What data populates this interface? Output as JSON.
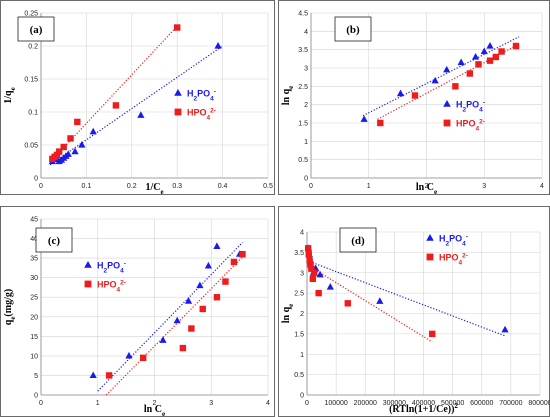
{
  "colors": {
    "h2po4": "#1a1aee",
    "hpo4": "#ee1c1c",
    "grid": "#d4d4d4",
    "axis": "#888888",
    "box": "#6a6a6a"
  },
  "chart_data": [
    {
      "panel": "(a)",
      "type": "scatter",
      "xlabel": "1/C",
      "xlabel_sub": "e",
      "ylabel": "1/q",
      "ylabel_sub": "e",
      "xlim": [
        0,
        0.5
      ],
      "ylim": [
        0,
        0.25
      ],
      "xticks": [
        "0",
        "0.1",
        "0.2",
        "0.3",
        "0.4",
        "0.5"
      ],
      "yticks": [
        "0",
        "0.05",
        "0.1",
        "0.15",
        "0.2",
        "0.25"
      ],
      "grid": true,
      "legend": "right",
      "series": [
        {
          "name": "H2PO4-",
          "name_base": "H",
          "name_sub": "2",
          "name_tail": "PO",
          "name_sub2": "4",
          "name_sup": "-",
          "marker": "triangle",
          "color": "#1a1aee",
          "x": [
            0.025,
            0.035,
            0.04,
            0.045,
            0.05,
            0.055,
            0.06,
            0.075,
            0.09,
            0.115,
            0.22,
            0.39
          ],
          "y": [
            0.025,
            0.028,
            0.025,
            0.027,
            0.03,
            0.033,
            0.036,
            0.04,
            0.05,
            0.07,
            0.095,
            0.2
          ],
          "trend": [
            [
              0.02,
              0.02
            ],
            [
              0.4,
              0.2
            ]
          ]
        },
        {
          "name": "HPO42-",
          "name_base": "HPO",
          "name_sub": "4",
          "name_sup": "2-",
          "marker": "square",
          "color": "#ee1c1c",
          "x": [
            0.025,
            0.03,
            0.035,
            0.04,
            0.05,
            0.065,
            0.08,
            0.165,
            0.3
          ],
          "y": [
            0.029,
            0.032,
            0.035,
            0.04,
            0.047,
            0.06,
            0.085,
            0.11,
            0.228
          ],
          "trend": [
            [
              0.02,
              0.024
            ],
            [
              0.3,
              0.23
            ]
          ]
        }
      ]
    },
    {
      "panel": "(b)",
      "type": "scatter",
      "xlabel": "ln C",
      "xlabel_sub": "e",
      "ylabel": "ln q",
      "ylabel_sub": "e",
      "xlim": [
        0,
        4
      ],
      "ylim": [
        0,
        4.5
      ],
      "xticks": [
        "0",
        "1",
        "2",
        "3",
        "4"
      ],
      "yticks": [
        "0",
        "0.5",
        "1",
        "1.5",
        "2",
        "2.5",
        "3",
        "3.5",
        "4",
        "4.5"
      ],
      "grid": true,
      "legend": "right",
      "series": [
        {
          "name": "H2PO4-",
          "name_base": "H",
          "name_sub": "2",
          "name_tail": "PO",
          "name_sub2": "4",
          "name_sup": "-",
          "marker": "triangle",
          "color": "#1a1aee",
          "x": [
            0.92,
            1.55,
            2.15,
            2.35,
            2.6,
            2.85,
            3.0,
            3.1
          ],
          "y": [
            1.6,
            2.3,
            2.65,
            2.95,
            3.15,
            3.3,
            3.45,
            3.6
          ],
          "trend": [
            [
              0.9,
              1.7
            ],
            [
              3.6,
              3.85
            ]
          ]
        },
        {
          "name": "HPO42-",
          "name_base": "HPO",
          "name_sub": "4",
          "name_sup": "2-",
          "marker": "square",
          "color": "#ee1c1c",
          "x": [
            1.2,
            1.8,
            2.5,
            2.75,
            2.9,
            3.1,
            3.2,
            3.3,
            3.55
          ],
          "y": [
            1.5,
            2.25,
            2.5,
            2.85,
            3.1,
            3.2,
            3.3,
            3.45,
            3.6
          ],
          "trend": [
            [
              1.15,
              1.6
            ],
            [
              3.6,
              3.65
            ]
          ]
        }
      ]
    },
    {
      "panel": "(c)",
      "type": "scatter",
      "xlabel": "ln C",
      "xlabel_sub": "e",
      "ylabel": "q",
      "ylabel_sub": "e",
      "ylabel_tail": "(mg/g)",
      "xlim": [
        0,
        4
      ],
      "ylim": [
        0,
        45
      ],
      "xticks": [
        "0",
        "1",
        "2",
        "3",
        "4"
      ],
      "yticks": [
        "0",
        "5",
        "10",
        "15",
        "20",
        "25",
        "30",
        "35",
        "40",
        "45"
      ],
      "grid": true,
      "legend": "left",
      "series": [
        {
          "name": "H2PO4-",
          "name_base": "H",
          "name_sub": "2",
          "name_tail": "PO",
          "name_sub2": "4",
          "name_sup": "-",
          "marker": "triangle",
          "color": "#1a1aee",
          "x": [
            0.92,
            1.55,
            2.15,
            2.4,
            2.6,
            2.8,
            2.95,
            3.1,
            3.5
          ],
          "y": [
            5,
            10,
            14,
            19,
            24,
            28,
            33,
            38,
            36
          ],
          "trend": [
            [
              1.0,
              1.0
            ],
            [
              3.55,
              39
            ]
          ]
        },
        {
          "name": "HPO42-",
          "name_base": "HPO",
          "name_sub": "4",
          "name_sup": "2-",
          "marker": "square",
          "color": "#ee1c1c",
          "x": [
            1.2,
            1.8,
            2.5,
            2.65,
            2.85,
            3.1,
            3.25,
            3.4,
            3.55
          ],
          "y": [
            5,
            9.5,
            12,
            17,
            22,
            25,
            29,
            34,
            36
          ],
          "trend": [
            [
              1.15,
              0
            ],
            [
              3.6,
              36
            ]
          ]
        }
      ]
    },
    {
      "panel": "(d)",
      "type": "scatter",
      "xlabel": "(RTln(1+1/Ce))",
      "xlabel_sup": "2",
      "ylabel": "ln q",
      "ylabel_sub": "e",
      "xlim": [
        0,
        800000
      ],
      "ylim": [
        0,
        4
      ],
      "xticks": [
        "0",
        "100000",
        "200000",
        "300000",
        "400000",
        "500000",
        "600000",
        "700000",
        "800000"
      ],
      "yticks": [
        "0",
        "0.5",
        "1",
        "1.5",
        "2",
        "2.5",
        "3",
        "3.5",
        "4"
      ],
      "grid": true,
      "legend": "top-right",
      "series": [
        {
          "name": "H2PO4-",
          "name_base": "H",
          "name_sub": "2",
          "name_tail": "PO",
          "name_sub2": "4",
          "name_sup": "-",
          "marker": "triangle",
          "color": "#1a1aee",
          "x": [
            5000,
            8000,
            12000,
            16000,
            22000,
            30000,
            45000,
            80000,
            250000,
            680000
          ],
          "y": [
            3.6,
            3.45,
            3.3,
            3.15,
            3.0,
            3.1,
            2.95,
            2.65,
            2.3,
            1.6
          ],
          "trend": [
            [
              0,
              3.3
            ],
            [
              680000,
              1.45
            ]
          ]
        },
        {
          "name": "HPO42-",
          "name_base": "HPO",
          "name_sub": "4",
          "name_sup": "2-",
          "marker": "square",
          "color": "#ee1c1c",
          "x": [
            4000,
            6000,
            9000,
            12000,
            15000,
            20000,
            25000,
            40000,
            140000,
            430000
          ],
          "y": [
            3.6,
            3.45,
            3.3,
            3.2,
            3.1,
            2.85,
            3.0,
            2.5,
            2.25,
            1.5
          ],
          "trend": [
            [
              0,
              3.2
            ],
            [
              430000,
              1.3
            ]
          ]
        }
      ]
    }
  ]
}
